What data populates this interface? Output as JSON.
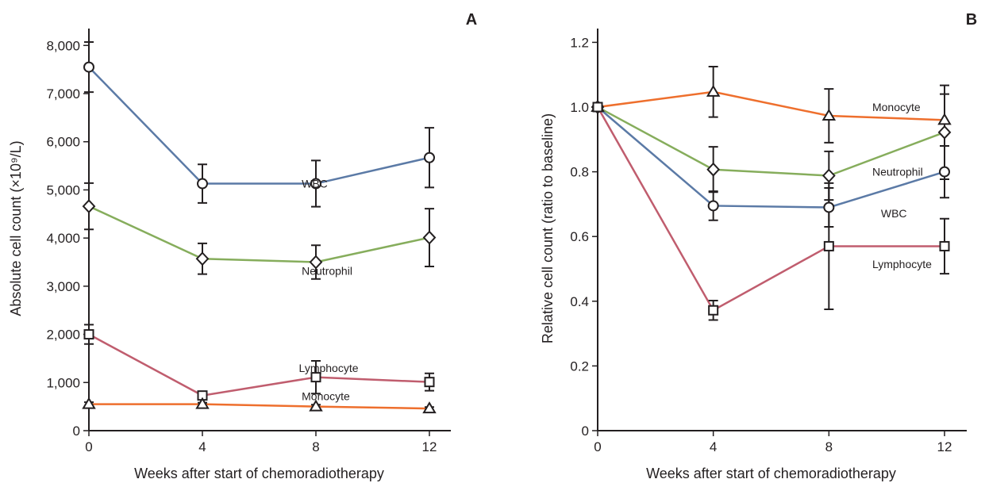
{
  "chart_data": [
    {
      "type": "line",
      "panel": "A",
      "title": "",
      "xlabel": "Weeks after start of chemoradiotherapy",
      "ylabel": "Absolute cell count (×10⁹/L)",
      "xlim": [
        0,
        12
      ],
      "ylim": [
        0,
        8400
      ],
      "x": [
        0,
        4,
        8,
        12
      ],
      "xticks": [
        0,
        4,
        8,
        12
      ],
      "yticks": [
        0,
        1000,
        2000,
        3000,
        4000,
        5000,
        6000,
        7000,
        8000
      ],
      "ytick_labels": [
        "0",
        "1,000",
        "2,000",
        "3,000",
        "4,000",
        "5,000",
        "6,000",
        "7,000",
        "8,000"
      ],
      "grid": false,
      "series": [
        {
          "name": "WBC",
          "color": "#5b7aa6",
          "marker": "circle",
          "values": [
            7550,
            5130,
            5130,
            5670
          ],
          "error": [
            520,
            400,
            480,
            620
          ],
          "label_at": [
            7.5,
            5130
          ]
        },
        {
          "name": "Neutrophil",
          "color": "#86ad5c",
          "marker": "diamond",
          "values": [
            4660,
            3570,
            3500,
            4010
          ],
          "error": [
            480,
            320,
            350,
            600
          ],
          "label_at": [
            7.5,
            3320
          ]
        },
        {
          "name": "Lymphocyte",
          "color": "#c05d6e",
          "marker": "square",
          "values": [
            2000,
            730,
            1110,
            1010
          ],
          "error": [
            200,
            60,
            340,
            180
          ],
          "label_at": [
            7.4,
            1300
          ]
        },
        {
          "name": "Monocyte",
          "color": "#ee6f2d",
          "marker": "triangle",
          "values": [
            550,
            550,
            500,
            460
          ],
          "error": [
            40,
            30,
            40,
            30
          ],
          "label_at": [
            7.5,
            720
          ]
        }
      ]
    },
    {
      "type": "line",
      "panel": "B",
      "title": "",
      "xlabel": "Weeks after start of chemoradiotherapy",
      "ylabel": "Relative cell count (ratio to baseline)",
      "xlim": [
        0,
        12
      ],
      "ylim": [
        0,
        1.25
      ],
      "x": [
        0,
        4,
        8,
        12
      ],
      "xticks": [
        0,
        4,
        8,
        12
      ],
      "yticks": [
        0,
        0.2,
        0.4,
        0.6,
        0.8,
        1.0,
        1.2
      ],
      "ytick_labels": [
        "0",
        "0.2",
        "0.4",
        "0.6",
        "0.8",
        "1.0",
        "1.2"
      ],
      "grid": false,
      "series": [
        {
          "name": "Monocyte",
          "color": "#ee6f2d",
          "marker": "triangle",
          "values": [
            1.0,
            1.047,
            0.973,
            0.96
          ],
          "error": [
            0,
            0.078,
            0.083,
            0.08
          ],
          "label_at": [
            9.5,
            1.0
          ]
        },
        {
          "name": "Neutrophil",
          "color": "#86ad5c",
          "marker": "diamond",
          "values": [
            1.0,
            0.807,
            0.788,
            0.922
          ],
          "error": [
            0,
            0.07,
            0.075,
            0.145
          ],
          "label_at": [
            9.5,
            0.8
          ]
        },
        {
          "name": "WBC",
          "color": "#5b7aa6",
          "marker": "circle",
          "values": [
            1.0,
            0.695,
            0.69,
            0.8
          ],
          "error": [
            0,
            0.045,
            0.06,
            0.08
          ],
          "label_at": [
            9.8,
            0.672
          ]
        },
        {
          "name": "Lymphocyte",
          "color": "#c05d6e",
          "marker": "square",
          "values": [
            1.0,
            0.372,
            0.57,
            0.57
          ],
          "error": [
            0,
            0.03,
            0.195,
            0.085
          ],
          "label_at": [
            9.5,
            0.515
          ]
        }
      ]
    }
  ]
}
